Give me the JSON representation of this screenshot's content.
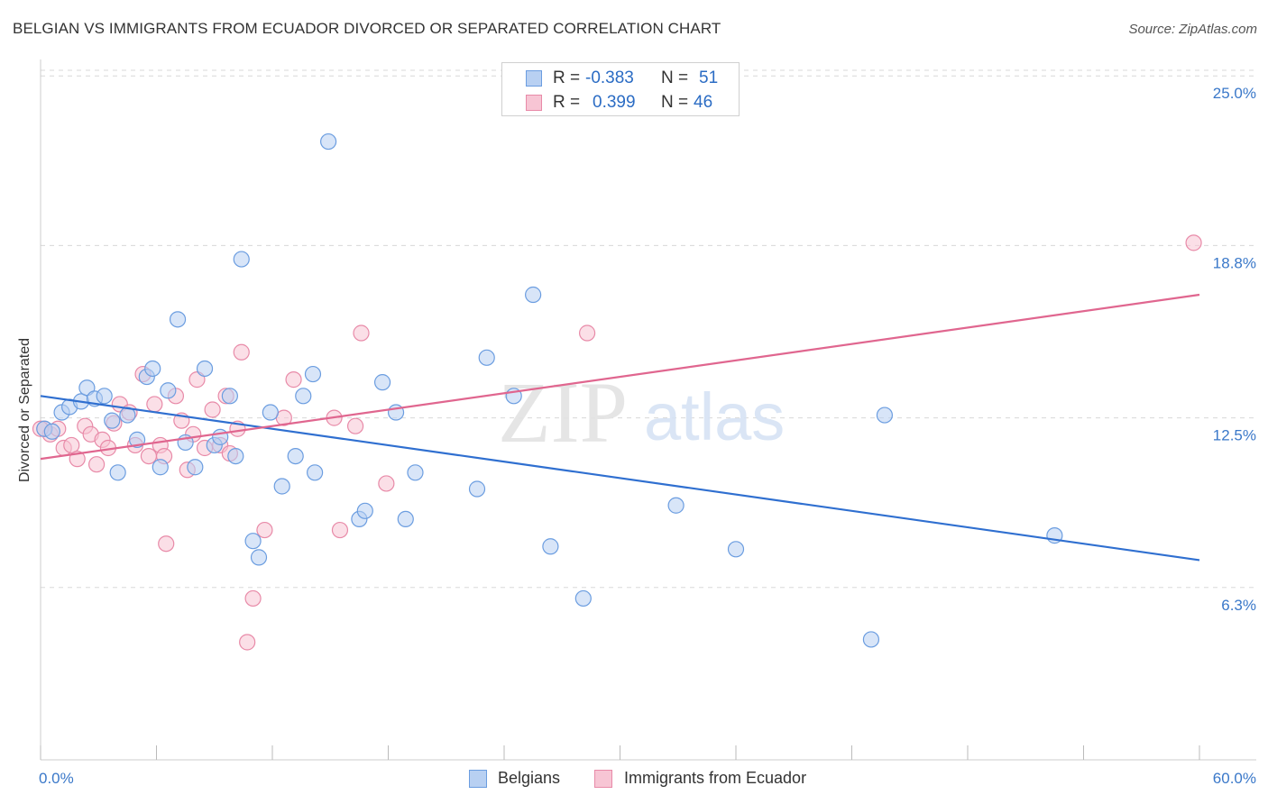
{
  "title": "BELGIAN VS IMMIGRANTS FROM ECUADOR DIVORCED OR SEPARATED CORRELATION CHART",
  "source": "Source: ZipAtlas.com",
  "watermark": {
    "zip": "ZIP",
    "atlas": "atlas"
  },
  "legend_top": {
    "rows": [
      {
        "r_label": "R = ",
        "r_value": "-0.383",
        "n_label": "N = ",
        "n_value": "51"
      },
      {
        "r_label": "R = ",
        "r_value": "0.399",
        "n_label": "N = ",
        "n_value": "46"
      }
    ]
  },
  "legend_bottom": [
    "Belgians",
    "Immigrants from Ecuador"
  ],
  "colors": {
    "blue_fill": "#b8d0f2",
    "blue_stroke": "#6b9de0",
    "blue_line": "#2f6fd0",
    "pink_fill": "#f7c5d4",
    "pink_stroke": "#e88aa8",
    "pink_line": "#e0668f",
    "grid": "#d8d8d8",
    "tick_text": "#3a78c9"
  },
  "chart_data": {
    "type": "scatter",
    "title": "BELGIAN VS IMMIGRANTS FROM ECUADOR DIVORCED OR SEPARATED CORRELATION CHART",
    "xlabel": "",
    "ylabel": "Divorced or Separated",
    "xlim": [
      0,
      60
    ],
    "ylim": [
      0,
      25.6
    ],
    "x_tick_labels": [
      "0.0%",
      "60.0%"
    ],
    "y_ticks": [
      6.3,
      12.5,
      18.8,
      25.0
    ],
    "y_tick_labels": [
      "6.3%",
      "12.5%",
      "18.8%",
      "25.0%"
    ],
    "grid": true,
    "legend_position": "top-center",
    "series": [
      {
        "name": "Belgians",
        "r": -0.383,
        "n": 51,
        "trend": [
          [
            0,
            13.3
          ],
          [
            60,
            7.3
          ]
        ],
        "points": [
          [
            0.2,
            12.1
          ],
          [
            0.6,
            12.0
          ],
          [
            1.1,
            12.7
          ],
          [
            1.5,
            12.9
          ],
          [
            2.1,
            13.1
          ],
          [
            2.4,
            13.6
          ],
          [
            2.8,
            13.2
          ],
          [
            3.3,
            13.3
          ],
          [
            3.7,
            12.4
          ],
          [
            4.0,
            10.5
          ],
          [
            4.5,
            12.6
          ],
          [
            5.0,
            11.7
          ],
          [
            5.5,
            14.0
          ],
          [
            5.8,
            14.3
          ],
          [
            6.2,
            10.7
          ],
          [
            6.6,
            13.5
          ],
          [
            7.1,
            16.1
          ],
          [
            7.5,
            11.6
          ],
          [
            8.0,
            10.7
          ],
          [
            8.5,
            14.3
          ],
          [
            9.0,
            11.5
          ],
          [
            9.3,
            11.8
          ],
          [
            9.8,
            13.3
          ],
          [
            10.1,
            11.1
          ],
          [
            10.4,
            18.3
          ],
          [
            11.0,
            8.0
          ],
          [
            11.3,
            7.4
          ],
          [
            11.9,
            12.7
          ],
          [
            12.5,
            10.0
          ],
          [
            13.2,
            11.1
          ],
          [
            13.6,
            13.3
          ],
          [
            14.1,
            14.1
          ],
          [
            14.2,
            10.5
          ],
          [
            14.9,
            22.6
          ],
          [
            16.5,
            8.8
          ],
          [
            16.8,
            9.1
          ],
          [
            17.7,
            13.8
          ],
          [
            18.4,
            12.7
          ],
          [
            18.9,
            8.8
          ],
          [
            19.4,
            10.5
          ],
          [
            22.6,
            9.9
          ],
          [
            23.1,
            14.7
          ],
          [
            24.5,
            13.3
          ],
          [
            25.5,
            17.0
          ],
          [
            26.4,
            7.8
          ],
          [
            28.1,
            5.9
          ],
          [
            32.9,
            9.3
          ],
          [
            36.0,
            7.7
          ],
          [
            43.0,
            4.4
          ],
          [
            43.7,
            12.6
          ],
          [
            52.5,
            8.2
          ]
        ]
      },
      {
        "name": "Immigrants from Ecuador",
        "r": 0.399,
        "n": 46,
        "trend": [
          [
            0,
            11.0
          ],
          [
            60,
            17.0
          ]
        ],
        "points": [
          [
            0.2,
            12.1
          ],
          [
            0.5,
            11.9
          ],
          [
            0.9,
            12.1
          ],
          [
            1.2,
            11.4
          ],
          [
            1.6,
            11.5
          ],
          [
            1.9,
            11.0
          ],
          [
            2.3,
            12.2
          ],
          [
            2.6,
            11.9
          ],
          [
            2.9,
            10.8
          ],
          [
            3.2,
            11.7
          ],
          [
            3.5,
            11.4
          ],
          [
            3.8,
            12.3
          ],
          [
            4.1,
            13.0
          ],
          [
            4.6,
            12.7
          ],
          [
            4.9,
            11.5
          ],
          [
            5.3,
            14.1
          ],
          [
            5.6,
            11.1
          ],
          [
            5.9,
            13.0
          ],
          [
            6.2,
            11.5
          ],
          [
            6.4,
            11.1
          ],
          [
            6.5,
            7.9
          ],
          [
            7.0,
            13.3
          ],
          [
            7.3,
            12.4
          ],
          [
            7.6,
            10.6
          ],
          [
            7.9,
            11.9
          ],
          [
            8.1,
            13.9
          ],
          [
            8.5,
            11.4
          ],
          [
            8.9,
            12.8
          ],
          [
            9.3,
            11.5
          ],
          [
            9.6,
            13.3
          ],
          [
            9.8,
            11.2
          ],
          [
            10.2,
            12.1
          ],
          [
            10.4,
            14.9
          ],
          [
            10.7,
            4.3
          ],
          [
            11.0,
            5.9
          ],
          [
            11.6,
            8.4
          ],
          [
            12.6,
            12.5
          ],
          [
            13.1,
            13.9
          ],
          [
            15.2,
            12.5
          ],
          [
            15.5,
            8.4
          ],
          [
            16.3,
            12.2
          ],
          [
            16.6,
            15.6
          ],
          [
            17.9,
            10.1
          ],
          [
            28.3,
            15.6
          ],
          [
            59.7,
            18.9
          ],
          [
            0.0,
            12.1
          ]
        ]
      }
    ]
  }
}
